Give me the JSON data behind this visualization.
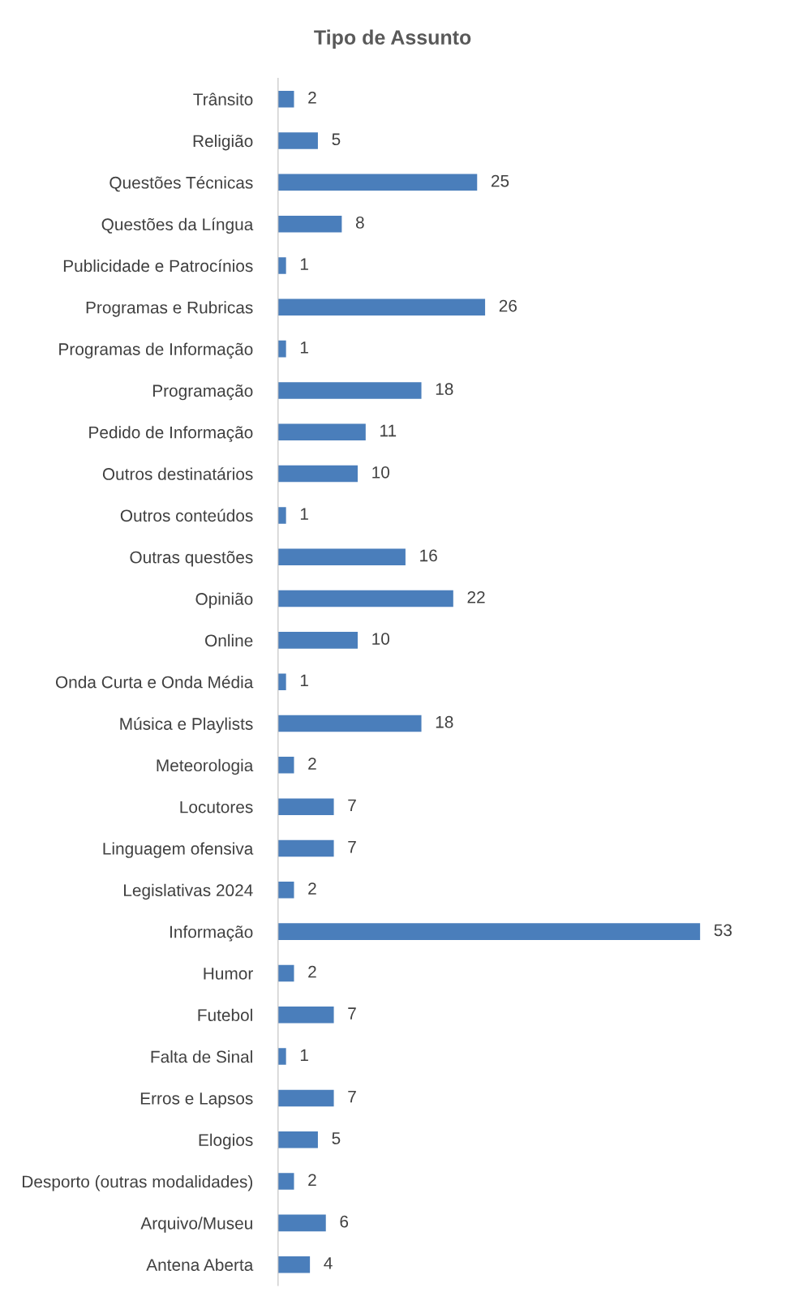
{
  "chart_data": {
    "type": "bar",
    "orientation": "horizontal",
    "title": "Tipo de Assunto",
    "categories": [
      "Trânsito",
      "Religião",
      "Questões Técnicas",
      "Questões da Língua",
      "Publicidade e Patrocínios",
      "Programas e Rubricas",
      "Programas de Informação",
      "Programação",
      "Pedido de Informação",
      "Outros destinatários",
      "Outros conteúdos",
      "Outras questões",
      "Opinião",
      "Online",
      "Onda Curta e Onda Média",
      "Música e Playlists",
      "Meteorologia",
      "Locutores",
      "Linguagem ofensiva",
      "Legislativas 2024",
      "Informação",
      "Humor",
      "Futebol",
      "Falta de Sinal",
      "Erros e Lapsos",
      "Elogios",
      "Desporto (outras modalidades)",
      "Arquivo/Museu",
      "Antena Aberta"
    ],
    "values": [
      2,
      5,
      25,
      8,
      1,
      26,
      1,
      18,
      11,
      10,
      1,
      16,
      22,
      10,
      1,
      18,
      2,
      7,
      7,
      2,
      53,
      2,
      7,
      1,
      7,
      5,
      2,
      6,
      4
    ],
    "color": "#4a7ebb",
    "data_labels": true,
    "grid": false,
    "legend": false,
    "tick_labels": "y"
  }
}
